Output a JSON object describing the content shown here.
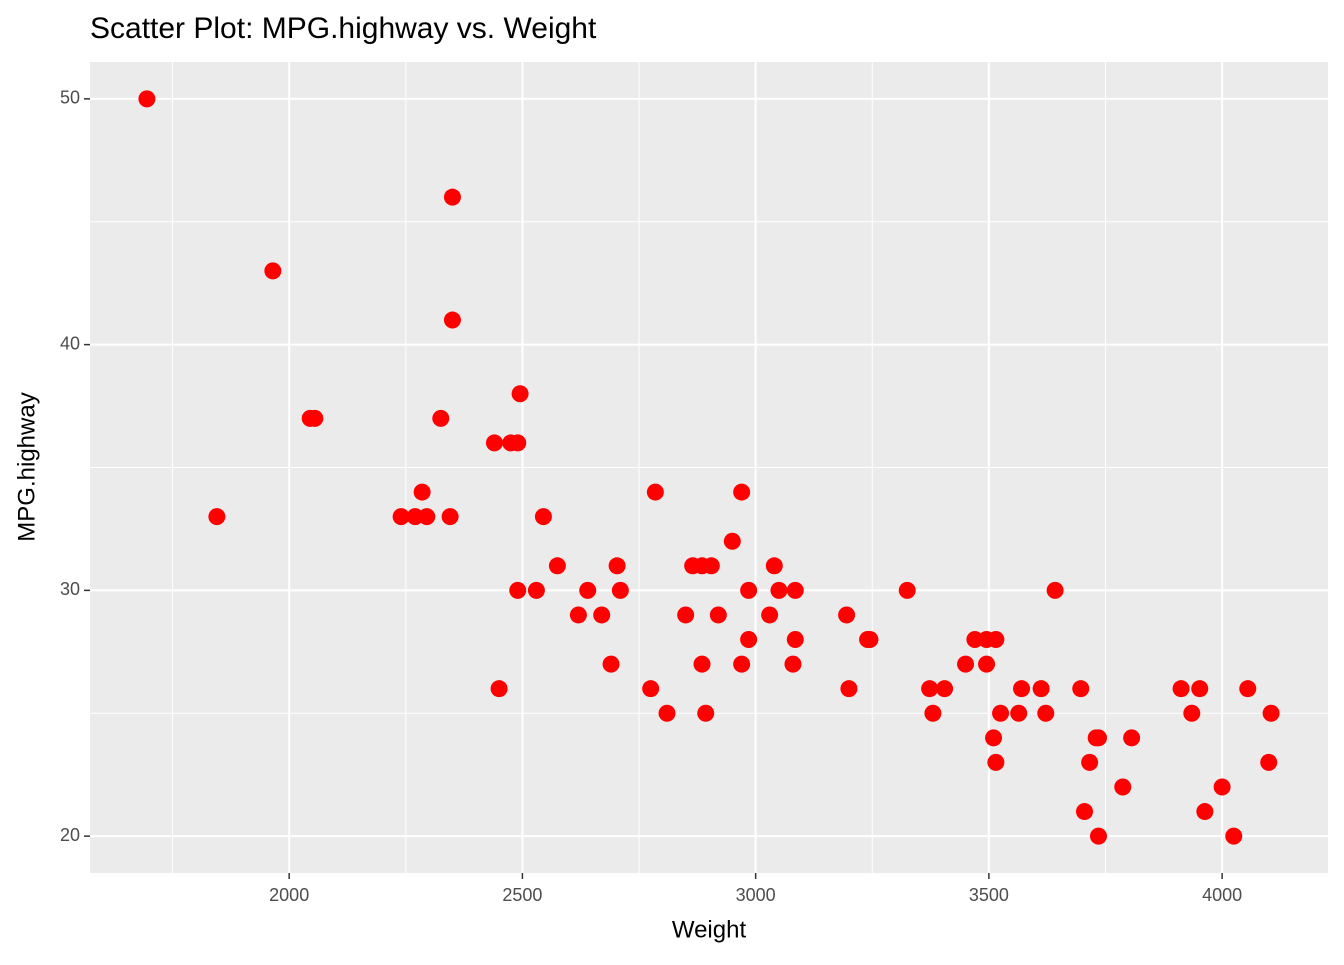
{
  "chart_data": {
    "type": "scatter",
    "title": "Scatter Plot: MPG.highway vs. Weight",
    "x_label": "Weight",
    "y_label": "MPG.highway",
    "xlim": [
      1573,
      4227
    ],
    "ylim": [
      18.5,
      51.5
    ],
    "xticks": [
      2000,
      2500,
      3000,
      3500,
      4000
    ],
    "yticks": [
      20,
      30,
      40,
      50
    ],
    "x_minor_breaks": [
      1750,
      2250,
      2750,
      3250,
      3750
    ],
    "y_minor_breaks": [
      25,
      35,
      45
    ],
    "grid": true,
    "color": "#ff0000",
    "x": [
      1695,
      1845,
      1965,
      2045,
      2055,
      2325,
      2350,
      2350,
      2345,
      2240,
      2270,
      2295,
      2285,
      2440,
      2475,
      2490,
      2495,
      2450,
      2490,
      2530,
      2545,
      2575,
      2620,
      2640,
      2670,
      2690,
      2703,
      2710,
      2775,
      2785,
      2810,
      2850,
      2865,
      2885,
      2905,
      2885,
      2893,
      2920,
      2950,
      2970,
      2970,
      2985,
      2985,
      3030,
      3040,
      3050,
      3080,
      3085,
      3085,
      3195,
      3200,
      3240,
      3245,
      3325,
      3373,
      3380,
      3405,
      3450,
      3470,
      3495,
      3515,
      3495,
      3510,
      3515,
      3525,
      3564,
      3570,
      3612,
      3622,
      3642,
      3697,
      3705,
      3716,
      3730,
      3735,
      3735,
      3787,
      3806,
      3912,
      3935,
      3952,
      3963,
      4000,
      4025,
      4055,
      4105,
      4100
    ],
    "y": [
      50,
      33,
      43,
      37,
      37,
      37,
      46,
      41,
      33,
      33,
      33,
      33,
      34,
      36,
      36,
      36,
      38,
      26,
      30,
      30,
      33,
      31,
      29,
      30,
      29,
      27,
      31,
      30,
      26,
      34,
      25,
      29,
      31,
      31,
      31,
      27,
      25,
      29,
      32,
      27,
      34,
      30,
      28,
      29,
      31,
      30,
      27,
      28,
      30,
      29,
      26,
      28,
      28,
      30,
      26,
      25,
      26,
      27,
      28,
      28,
      28,
      27,
      24,
      23,
      25,
      25,
      26,
      26,
      25,
      30,
      26,
      21,
      23,
      24,
      24,
      20,
      22,
      24,
      26,
      25,
      26,
      21,
      22,
      20,
      26,
      25,
      23
    ]
  }
}
